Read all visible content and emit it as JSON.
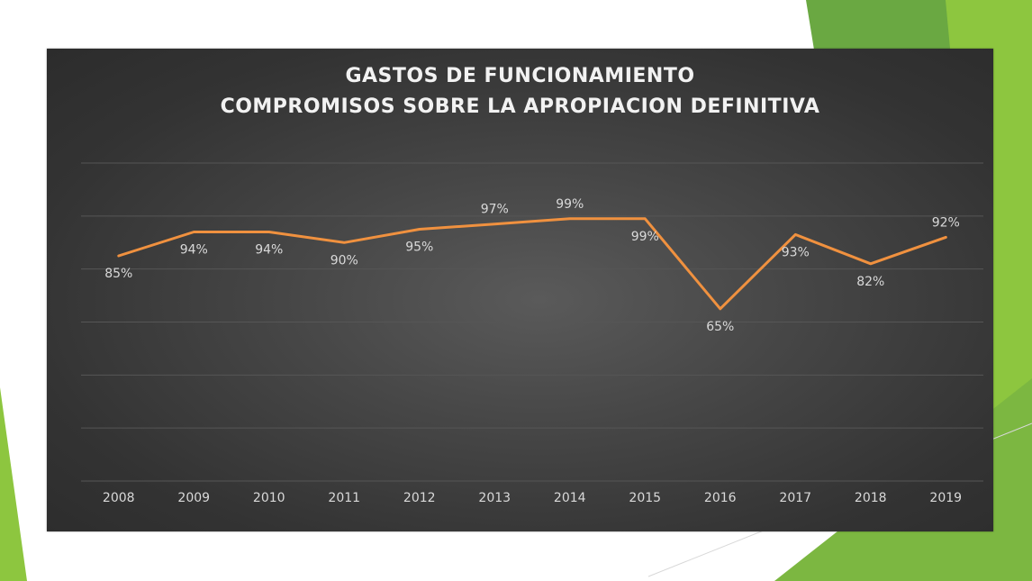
{
  "chart_data": {
    "type": "line",
    "title": [
      "GASTOS DE FUNCIONAMIENTO",
      "COMPROMISOS SOBRE LA APROPIACION DEFINITIVA"
    ],
    "categories": [
      "2008",
      "2009",
      "2010",
      "2011",
      "2012",
      "2013",
      "2014",
      "2015",
      "2016",
      "2017",
      "2018",
      "2019"
    ],
    "series": [
      {
        "values": [
          85,
          94,
          94,
          90,
          95,
          97,
          99,
          99,
          65,
          93,
          82,
          92
        ],
        "labels": [
          "85%",
          "94%",
          "94%",
          "90%",
          "95%",
          "97%",
          "99%",
          "99%",
          "65%",
          "93%",
          "82%",
          "92%"
        ],
        "label_position": [
          "below",
          "below",
          "below",
          "below",
          "below",
          "above",
          "above",
          "below",
          "below",
          "below",
          "below",
          "above"
        ],
        "color": "#f0913f"
      }
    ],
    "ylim": [
      0,
      120
    ],
    "grid": true,
    "legend": "none",
    "xlabel": "",
    "ylabel": ""
  },
  "colors": {
    "panel_background": "#3a3a3a",
    "gridline": "#565656",
    "text": "#d9d9d9",
    "accent_green": "#8dc63f",
    "accent_green_dark": "#5d9d39"
  }
}
